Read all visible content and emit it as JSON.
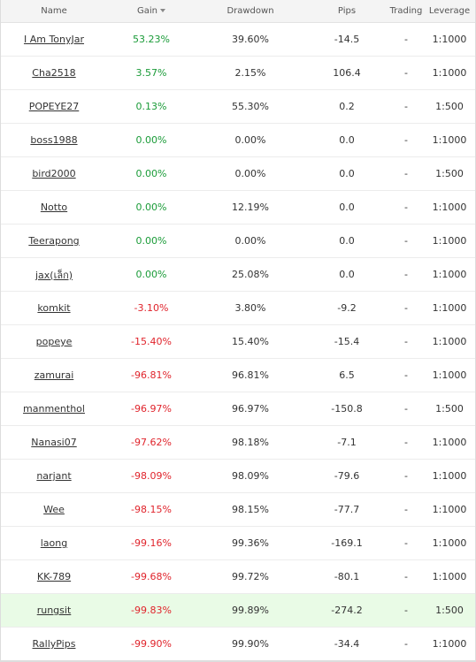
{
  "header": {
    "name": "Name",
    "gain": "Gain",
    "drawdown": "Drawdown",
    "pips": "Pips",
    "trading": "Trading",
    "leverage": "Leverage"
  },
  "rows": [
    {
      "name": "I Am TonyJar",
      "gain": "53.23%",
      "drawdown": "39.60%",
      "pips": "-14.5",
      "trading": "-",
      "leverage": "1:1000",
      "sign": "pos"
    },
    {
      "name": "Cha2518",
      "gain": "3.57%",
      "drawdown": "2.15%",
      "pips": "106.4",
      "trading": "-",
      "leverage": "1:1000",
      "sign": "pos"
    },
    {
      "name": "POPEYE27",
      "gain": "0.13%",
      "drawdown": "55.30%",
      "pips": "0.2",
      "trading": "-",
      "leverage": "1:500",
      "sign": "pos"
    },
    {
      "name": "boss1988",
      "gain": "0.00%",
      "drawdown": "0.00%",
      "pips": "0.0",
      "trading": "-",
      "leverage": "1:1000",
      "sign": "zero"
    },
    {
      "name": "bird2000",
      "gain": "0.00%",
      "drawdown": "0.00%",
      "pips": "0.0",
      "trading": "-",
      "leverage": "1:500",
      "sign": "zero"
    },
    {
      "name": "Notto",
      "gain": "0.00%",
      "drawdown": "12.19%",
      "pips": "0.0",
      "trading": "-",
      "leverage": "1:1000",
      "sign": "zero"
    },
    {
      "name": "Teerapong",
      "gain": "0.00%",
      "drawdown": "0.00%",
      "pips": "0.0",
      "trading": "-",
      "leverage": "1:1000",
      "sign": "zero"
    },
    {
      "name": "jax(เล็ก)",
      "gain": "0.00%",
      "drawdown": "25.08%",
      "pips": "0.0",
      "trading": "-",
      "leverage": "1:1000",
      "sign": "zero"
    },
    {
      "name": "komkit",
      "gain": "-3.10%",
      "drawdown": "3.80%",
      "pips": "-9.2",
      "trading": "-",
      "leverage": "1:1000",
      "sign": "neg"
    },
    {
      "name": "popeye",
      "gain": "-15.40%",
      "drawdown": "15.40%",
      "pips": "-15.4",
      "trading": "-",
      "leverage": "1:1000",
      "sign": "neg"
    },
    {
      "name": "zamurai",
      "gain": "-96.81%",
      "drawdown": "96.81%",
      "pips": "6.5",
      "trading": "-",
      "leverage": "1:1000",
      "sign": "neg"
    },
    {
      "name": "manmenthol",
      "gain": "-96.97%",
      "drawdown": "96.97%",
      "pips": "-150.8",
      "trading": "-",
      "leverage": "1:500",
      "sign": "neg"
    },
    {
      "name": "Nanasi07",
      "gain": "-97.62%",
      "drawdown": "98.18%",
      "pips": "-7.1",
      "trading": "-",
      "leverage": "1:1000",
      "sign": "neg"
    },
    {
      "name": "narjant",
      "gain": "-98.09%",
      "drawdown": "98.09%",
      "pips": "-79.6",
      "trading": "-",
      "leverage": "1:1000",
      "sign": "neg"
    },
    {
      "name": "Wee",
      "gain": "-98.15%",
      "drawdown": "98.15%",
      "pips": "-77.7",
      "trading": "-",
      "leverage": "1:1000",
      "sign": "neg"
    },
    {
      "name": "laong",
      "gain": "-99.16%",
      "drawdown": "99.36%",
      "pips": "-169.1",
      "trading": "-",
      "leverage": "1:1000",
      "sign": "neg"
    },
    {
      "name": "KK-789",
      "gain": "-99.68%",
      "drawdown": "99.72%",
      "pips": "-80.1",
      "trading": "-",
      "leverage": "1:1000",
      "sign": "neg"
    },
    {
      "name": "rungsit",
      "gain": "-99.83%",
      "drawdown": "99.89%",
      "pips": "-274.2",
      "trading": "-",
      "leverage": "1:500",
      "sign": "neg",
      "highlighted": true
    },
    {
      "name": "RallyPips",
      "gain": "-99.90%",
      "drawdown": "99.90%",
      "pips": "-34.4",
      "trading": "-",
      "leverage": "1:1000",
      "sign": "neg"
    }
  ],
  "colors": {
    "gain_positive": "#1a9b38",
    "gain_negative": "#e0242c",
    "row_highlight": "#e9fbe6",
    "header_bg": "#f4f4f4"
  },
  "icons": {
    "sort": "sort-descending-arrow-icon"
  }
}
